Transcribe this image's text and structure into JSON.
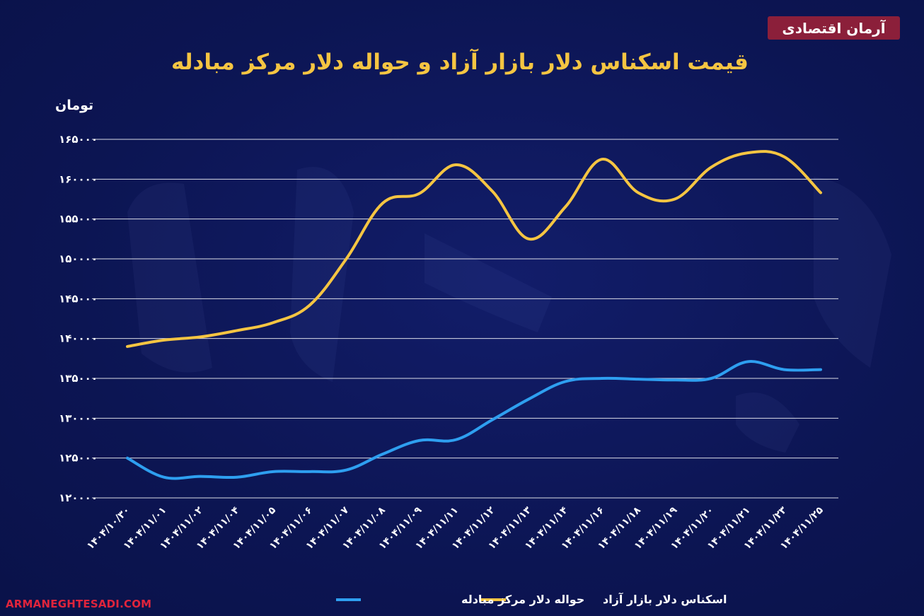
{
  "brand": {
    "label": "آرمان اقتصادی"
  },
  "footer": {
    "site": "ARMANEGHTESADI.COM"
  },
  "colors": {
    "background": "#0d1657",
    "free_market": "#f5c542",
    "exchange_center": "#2e9ff0",
    "brand": "#8b1f3a",
    "site": "#e0243c"
  },
  "chart_data": {
    "type": "line",
    "title": "قیمت اسکناس دلار بازار آزاد و حواله دلار مرکز مبادله",
    "ylabel": "تومان",
    "xlabel": "",
    "ylim": [
      120000,
      165000
    ],
    "yticks": [
      120000,
      125000,
      130000,
      135000,
      140000,
      145000,
      150000,
      155000,
      160000,
      165000
    ],
    "ytick_labels": [
      "۱۲۰۰۰۰",
      "۱۲۵۰۰۰",
      "۱۳۰۰۰۰",
      "۱۳۵۰۰۰",
      "۱۴۰۰۰۰",
      "۱۴۵۰۰۰",
      "۱۵۰۰۰۰",
      "۱۵۵۰۰۰",
      "۱۶۰۰۰۰",
      "۱۶۵۰۰۰"
    ],
    "categories": [
      "۱۴۰۴/۱۰/۳۰",
      "۱۴۰۴/۱۱/۰۱",
      "۱۴۰۴/۱۱/۰۲",
      "۱۴۰۴/۱۱/۰۴",
      "۱۴۰۴/۱۱/۰۵",
      "۱۴۰۴/۱۱/۰۶",
      "۱۴۰۴/۱۱/۰۷",
      "۱۴۰۴/۱۱/۰۸",
      "۱۴۰۴/۱۱/۰۹",
      "۱۴۰۴/۱۱/۱۱",
      "۱۴۰۴/۱۱/۱۲",
      "۱۴۰۴/۱۱/۱۳",
      "۱۴۰۴/۱۱/۱۴",
      "۱۴۰۴/۱۱/۱۶",
      "۱۴۰۴/۱۱/۱۸",
      "۱۴۰۴/۱۱/۱۹",
      "۱۴۰۴/۱۱/۲۰",
      "۱۴۰۴/۱۱/۲۱",
      "۱۴۰۴/۱۱/۲۳",
      "۱۴۰۴/۱۱/۲۵"
    ],
    "series": [
      {
        "name": "اسکناس دلار بازار آزاد",
        "color": "#f5c542",
        "values": [
          139000,
          139800,
          140200,
          141000,
          142000,
          144200,
          150000,
          157000,
          158200,
          161800,
          158500,
          152500,
          156500,
          162500,
          158300,
          157500,
          161500,
          163300,
          162800,
          158300
        ]
      },
      {
        "name": "حواله دلار مرکز مبادله",
        "color": "#2e9ff0",
        "values": [
          125000,
          122600,
          122700,
          122600,
          123300,
          123300,
          123500,
          125500,
          127200,
          127300,
          129800,
          132400,
          134600,
          135000,
          134900,
          134800,
          135000,
          137100,
          136100,
          136100
        ]
      }
    ],
    "grid": true,
    "legend": "bottom-center"
  }
}
